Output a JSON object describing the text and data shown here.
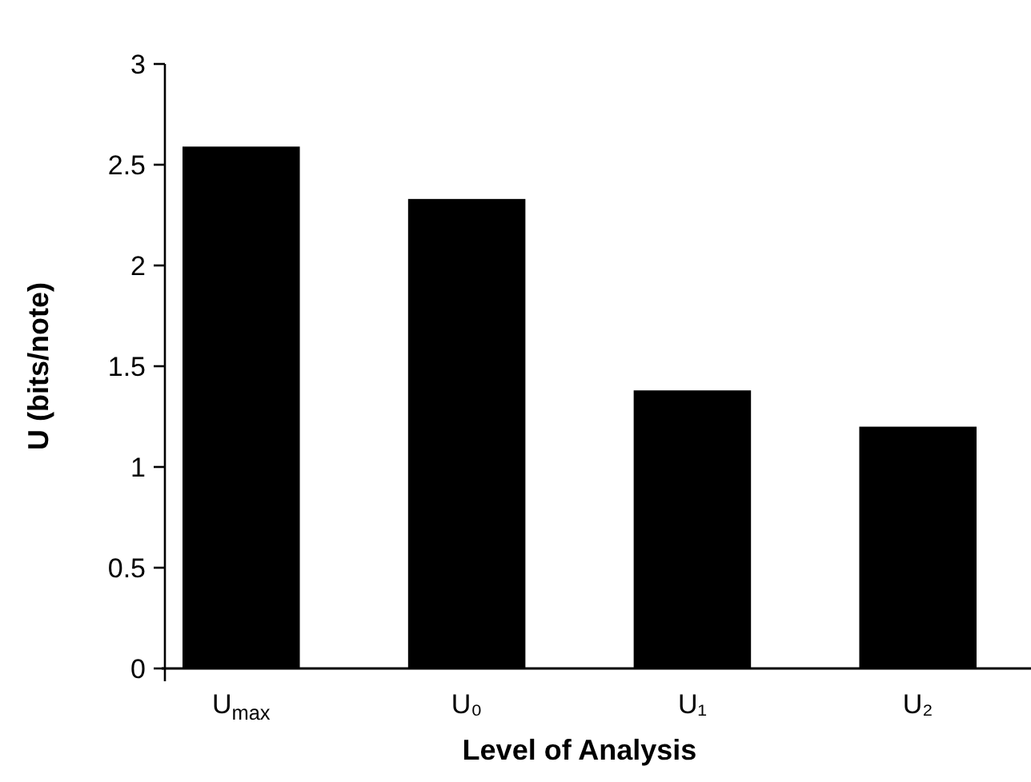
{
  "chart_data": {
    "type": "bar",
    "xlabel": "Level of Analysis",
    "ylabel": "U (bits/note)",
    "categories": [
      "U$_{max}$",
      "U₀",
      "U₁",
      "U₂"
    ],
    "values": [
      2.59,
      2.33,
      1.38,
      1.2
    ],
    "color": "#000000",
    "ylim": [
      0,
      3
    ],
    "yticks": [
      0,
      0.5,
      1,
      1.5,
      2,
      2.5,
      3
    ],
    "grid": false
  }
}
